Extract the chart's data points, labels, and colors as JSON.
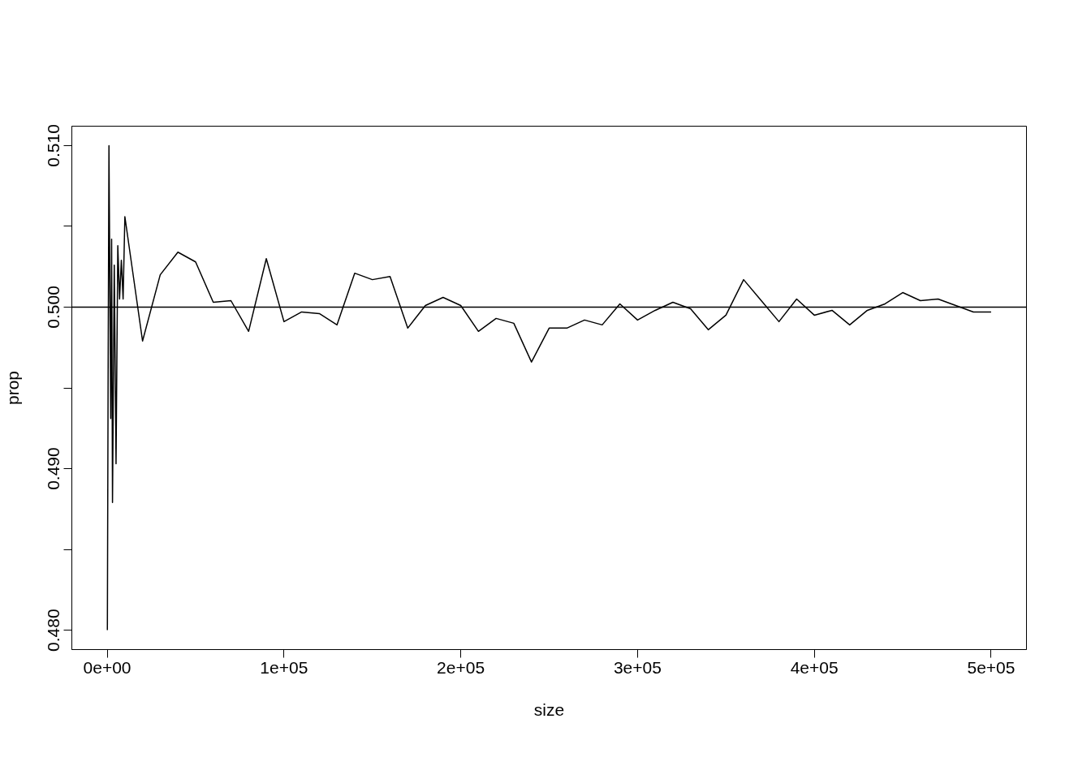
{
  "chart_data": {
    "type": "line",
    "xlabel": "size",
    "ylabel": "prop",
    "x": [
      100,
      500,
      1000,
      2000,
      2500,
      3000,
      4000,
      5000,
      6000,
      7000,
      8000,
      9000,
      10000,
      20000,
      30000,
      40000,
      50000,
      60000,
      70000,
      80000,
      90000,
      100000,
      110000,
      120000,
      130000,
      140000,
      150000,
      160000,
      170000,
      180000,
      190000,
      200000,
      210000,
      220000,
      230000,
      240000,
      250000,
      260000,
      270000,
      280000,
      290000,
      300000,
      310000,
      320000,
      330000,
      340000,
      350000,
      360000,
      370000,
      380000,
      390000,
      400000,
      410000,
      420000,
      430000,
      440000,
      450000,
      460000,
      470000,
      480000,
      490000,
      500000
    ],
    "series": [
      {
        "color": "#000000",
        "values": [
          0.48,
          0.495,
          0.51,
          0.4931,
          0.5042,
          0.4879,
          0.5026,
          0.4903,
          0.5038,
          0.5005,
          0.5029,
          0.5005,
          0.5056,
          0.4979,
          0.502,
          0.5034,
          0.5028,
          0.5003,
          0.5004,
          0.4985,
          0.503,
          0.4991,
          0.4997,
          0.4996,
          0.4989,
          0.5021,
          0.5017,
          0.5019,
          0.4987,
          0.5001,
          0.5006,
          0.5001,
          0.4985,
          0.4993,
          0.499,
          0.4966,
          0.4987,
          0.4987,
          0.4992,
          0.4989,
          0.5002,
          0.4992,
          0.4998,
          0.5003,
          0.4999,
          0.4986,
          0.4995,
          0.5017,
          0.5004,
          0.4991,
          0.5005,
          0.4995,
          0.4998,
          0.4989,
          0.4998,
          0.5002,
          0.5009,
          0.5004,
          0.5005,
          0.5001,
          0.4997,
          0.4997
        ]
      }
    ],
    "xlim": [
      -20000,
      520000
    ],
    "ylim": [
      0.4788,
      0.5112
    ],
    "xticks": [
      {
        "value": 0,
        "label": "0e+00"
      },
      {
        "value": 100000,
        "label": "1e+05"
      },
      {
        "value": 200000,
        "label": "2e+05"
      },
      {
        "value": 300000,
        "label": "3e+05"
      },
      {
        "value": 400000,
        "label": "4e+05"
      },
      {
        "value": 500000,
        "label": "5e+05"
      }
    ],
    "yticks": [
      {
        "value": 0.48,
        "label": "0.480"
      },
      {
        "value": 0.485,
        "label": null
      },
      {
        "value": 0.49,
        "label": "0.490"
      },
      {
        "value": 0.495,
        "label": null
      },
      {
        "value": 0.5,
        "label": "0.500"
      },
      {
        "value": 0.505,
        "label": null
      },
      {
        "value": 0.51,
        "label": "0.510"
      }
    ],
    "ref_lines": [
      {
        "axis": "y",
        "value": 0.5,
        "label": null,
        "color": "#000000"
      }
    ],
    "grid": false
  }
}
